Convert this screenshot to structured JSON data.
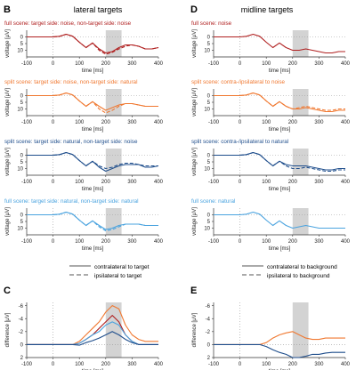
{
  "figure": {
    "panel_letters": [
      "B",
      "D",
      "C",
      "E"
    ],
    "column_titles": [
      "lateral targets",
      "midline targets"
    ]
  },
  "colors": {
    "dark_red": "#b02020",
    "orange": "#f07830",
    "dark_blue": "#1f4e8c",
    "light_blue": "#4aa3df",
    "gray": "#555555",
    "shade": "#d3d3d3"
  },
  "axis_text": {
    "voltage_label": "voltage [μV]",
    "time_label": "time [ms]",
    "difference_label": "difference [μV]"
  },
  "legends": {
    "lateral": [
      "contralateral to target",
      "ipsilateral to target"
    ],
    "midline": [
      "contralateral to background",
      "ipsilateral to background"
    ]
  },
  "chart_data": [
    {
      "type": "line",
      "panel": "B1",
      "title": "full scene: target side: noise, non-target side: noise",
      "color_key": "dark_red",
      "xlabel": "time [ms]",
      "ylabel": "voltage [μV]",
      "xlim": [
        -100,
        400
      ],
      "ylim": [
        15,
        -5
      ],
      "inverted_y": true,
      "xticks": [
        -100,
        0,
        100,
        200,
        300,
        400
      ],
      "yticks": [
        0,
        5,
        10
      ],
      "shaded_window": [
        200,
        260
      ],
      "x": [
        -100,
        -50,
        0,
        25,
        50,
        75,
        100,
        125,
        150,
        175,
        200,
        225,
        250,
        275,
        300,
        325,
        350,
        375,
        400
      ],
      "series": [
        {
          "name": "contralateral",
          "values": [
            0,
            0,
            0,
            -0.5,
            -2,
            -0.5,
            4,
            8,
            4.5,
            9,
            12,
            11,
            8,
            6,
            6,
            7,
            9,
            9,
            8
          ]
        },
        {
          "name": "ipsilateral",
          "values": [
            0,
            0,
            0,
            -0.5,
            -2,
            -0.5,
            4,
            8,
            4.5,
            10,
            13,
            11.5,
            9,
            7,
            6,
            7,
            9,
            9,
            8
          ]
        }
      ]
    },
    {
      "type": "line",
      "panel": "B2",
      "title": "split scene: target side: noise, non-target side: natural",
      "color_key": "orange",
      "xlabel": "time [ms]",
      "ylabel": "voltage [μV]",
      "xlim": [
        -100,
        400
      ],
      "ylim": [
        15,
        -5
      ],
      "inverted_y": true,
      "xticks": [
        -100,
        0,
        100,
        200,
        300,
        400
      ],
      "yticks": [
        0,
        5,
        10
      ],
      "shaded_window": [
        200,
        260
      ],
      "x": [
        -100,
        -50,
        0,
        25,
        50,
        75,
        100,
        125,
        150,
        175,
        200,
        225,
        250,
        275,
        300,
        325,
        350,
        375,
        400
      ],
      "series": [
        {
          "name": "contralateral",
          "values": [
            0,
            0,
            0,
            -0.5,
            -2,
            -0.5,
            4,
            8,
            4.5,
            8,
            11,
            9,
            7,
            6,
            6,
            7,
            8,
            8,
            8
          ]
        },
        {
          "name": "ipsilateral",
          "values": [
            0,
            0,
            0,
            -0.5,
            -2,
            -0.5,
            4,
            8,
            4.5,
            10,
            13,
            11,
            8,
            6,
            6,
            7,
            8,
            8,
            8
          ]
        }
      ]
    },
    {
      "type": "line",
      "panel": "B3",
      "title": "split scene: target side: natural, non-target side: noise",
      "color_key": "dark_blue",
      "xlabel": "time [ms]",
      "ylabel": "voltage [μV]",
      "xlim": [
        -100,
        400
      ],
      "ylim": [
        15,
        -5
      ],
      "inverted_y": true,
      "xticks": [
        -100,
        0,
        100,
        200,
        300,
        400
      ],
      "yticks": [
        0,
        5,
        10
      ],
      "shaded_window": [
        200,
        260
      ],
      "x": [
        -100,
        -50,
        0,
        25,
        50,
        75,
        100,
        125,
        150,
        175,
        200,
        225,
        250,
        275,
        300,
        325,
        350,
        375,
        400
      ],
      "series": [
        {
          "name": "contralateral",
          "values": [
            0,
            0,
            0,
            -0.5,
            -2,
            -0.5,
            4,
            8,
            4.5,
            9,
            12,
            10,
            8,
            7,
            7,
            7,
            9,
            9,
            8
          ]
        },
        {
          "name": "ipsilateral",
          "values": [
            0,
            0,
            0,
            -0.5,
            -2,
            -0.5,
            4,
            8,
            4.5,
            8,
            10,
            9,
            7,
            6,
            6,
            7,
            8,
            8,
            8
          ]
        }
      ]
    },
    {
      "type": "line",
      "panel": "B4",
      "title": "full scene: target side: natural, non-target side: natural",
      "color_key": "light_blue",
      "xlabel": "time [ms]",
      "ylabel": "voltage [μV]",
      "xlim": [
        -100,
        400
      ],
      "ylim": [
        15,
        -5
      ],
      "inverted_y": true,
      "xticks": [
        -100,
        0,
        100,
        200,
        300,
        400
      ],
      "yticks": [
        0,
        5,
        10
      ],
      "shaded_window": [
        200,
        260
      ],
      "x": [
        -100,
        -50,
        0,
        25,
        50,
        75,
        100,
        125,
        150,
        175,
        200,
        225,
        250,
        275,
        300,
        325,
        350,
        375,
        400
      ],
      "series": [
        {
          "name": "contralateral",
          "values": [
            0,
            0,
            0,
            -0.5,
            -2,
            -0.5,
            4,
            8,
            4.5,
            8,
            11,
            10,
            8,
            7,
            7,
            7,
            8,
            8,
            8
          ]
        },
        {
          "name": "ipsilateral",
          "values": [
            0,
            0,
            0,
            -0.5,
            -2,
            -0.5,
            4,
            8,
            4.5,
            9,
            12,
            11,
            9,
            7,
            7,
            7,
            8,
            8,
            8
          ]
        }
      ]
    },
    {
      "type": "line",
      "panel": "D1",
      "title": "full scene: noise",
      "color_key": "dark_red",
      "xlabel": "time [ms]",
      "ylabel": "voltage [μV]",
      "xlim": [
        -100,
        400
      ],
      "ylim": [
        15,
        -5
      ],
      "inverted_y": true,
      "xticks": [
        -100,
        0,
        100,
        200,
        300,
        400
      ],
      "yticks": [
        0,
        5,
        10
      ],
      "shaded_window": [
        200,
        260
      ],
      "x": [
        -100,
        -50,
        0,
        25,
        50,
        75,
        100,
        125,
        150,
        175,
        200,
        225,
        250,
        275,
        300,
        325,
        350,
        375,
        400
      ],
      "series": [
        {
          "name": "contralateral",
          "values": [
            0,
            0,
            0,
            -0.5,
            -2,
            -0.5,
            4,
            8,
            4.5,
            8,
            10,
            10,
            9,
            10,
            11,
            12,
            12,
            11,
            11
          ]
        }
      ]
    },
    {
      "type": "line",
      "panel": "D2",
      "title": "split scene: contra-/ipsilateral to noise",
      "color_key": "orange",
      "xlabel": "time [ms]",
      "ylabel": "voltage [μV]",
      "xlim": [
        -100,
        400
      ],
      "ylim": [
        15,
        -5
      ],
      "inverted_y": true,
      "xticks": [
        -100,
        0,
        100,
        200,
        300,
        400
      ],
      "yticks": [
        0,
        5,
        10
      ],
      "shaded_window": [
        200,
        260
      ],
      "x": [
        -100,
        -50,
        0,
        25,
        50,
        75,
        100,
        125,
        150,
        175,
        200,
        225,
        250,
        275,
        300,
        325,
        350,
        375,
        400
      ],
      "series": [
        {
          "name": "contralateral",
          "values": [
            0,
            0,
            0,
            -0.5,
            -2,
            -0.5,
            4,
            8,
            4.5,
            8,
            10,
            10,
            9,
            10,
            11,
            12,
            12,
            11,
            11
          ]
        },
        {
          "name": "ipsilateral",
          "values": [
            0,
            0,
            0,
            -0.5,
            -2,
            -0.5,
            4,
            8,
            4.5,
            8,
            10,
            9,
            8,
            9,
            10,
            11,
            11,
            10,
            10
          ]
        }
      ]
    },
    {
      "type": "line",
      "panel": "D3",
      "title": "split scene: contra-/ipsilateral to natural",
      "color_key": "dark_blue",
      "xlabel": "time [ms]",
      "ylabel": "voltage [μV]",
      "xlim": [
        -100,
        400
      ],
      "ylim": [
        15,
        -5
      ],
      "inverted_y": true,
      "xticks": [
        -100,
        0,
        100,
        200,
        300,
        400
      ],
      "yticks": [
        0,
        5,
        10
      ],
      "shaded_window": [
        200,
        260
      ],
      "x": [
        -100,
        -50,
        0,
        25,
        50,
        75,
        100,
        125,
        150,
        175,
        200,
        225,
        250,
        275,
        300,
        325,
        350,
        375,
        400
      ],
      "series": [
        {
          "name": "contralateral",
          "values": [
            0,
            0,
            0,
            -0.5,
            -2,
            -0.5,
            4,
            8,
            4.5,
            7,
            8,
            8,
            8,
            9,
            10,
            11,
            11,
            10,
            10
          ]
        },
        {
          "name": "ipsilateral",
          "values": [
            0,
            0,
            0,
            -0.5,
            -2,
            -0.5,
            4,
            8,
            4.5,
            8,
            10,
            10,
            9,
            10,
            11,
            12,
            12,
            11,
            11
          ]
        }
      ]
    },
    {
      "type": "line",
      "panel": "D4",
      "title": "full scene: natural",
      "color_key": "light_blue",
      "xlabel": "time [ms]",
      "ylabel": "voltage [μV]",
      "xlim": [
        -100,
        400
      ],
      "ylim": [
        15,
        -5
      ],
      "inverted_y": true,
      "xticks": [
        -100,
        0,
        100,
        200,
        300,
        400
      ],
      "yticks": [
        0,
        5,
        10
      ],
      "shaded_window": [
        200,
        260
      ],
      "x": [
        -100,
        -50,
        0,
        25,
        50,
        75,
        100,
        125,
        150,
        175,
        200,
        225,
        250,
        275,
        300,
        325,
        350,
        375,
        400
      ],
      "series": [
        {
          "name": "contralateral",
          "values": [
            0,
            0,
            0,
            -0.5,
            -2,
            -0.5,
            4,
            8,
            4.5,
            8,
            10,
            9,
            8,
            9,
            10,
            10,
            10,
            10,
            10
          ]
        }
      ]
    },
    {
      "type": "line",
      "panel": "C",
      "xlabel": "time [ms]",
      "ylabel": "difference [μV]",
      "xlim": [
        -100,
        400
      ],
      "ylim": [
        2,
        -6.5
      ],
      "inverted_y": true,
      "xticks": [
        -100,
        0,
        100,
        200,
        300,
        400
      ],
      "yticks": [
        -6,
        -4,
        -2,
        0,
        2
      ],
      "shaded_window": [
        200,
        260
      ],
      "x": [
        -100,
        -50,
        0,
        25,
        50,
        75,
        100,
        125,
        150,
        175,
        200,
        225,
        250,
        275,
        300,
        325,
        350,
        375,
        400
      ],
      "series": [
        {
          "color_key": "orange",
          "values": [
            0,
            0,
            0,
            0,
            0,
            0,
            -0.5,
            -1.5,
            -2.5,
            -3.5,
            -5,
            -6,
            -5.5,
            -3,
            -1.5,
            -0.8,
            -0.5,
            -0.5,
            -0.5
          ]
        },
        {
          "color_key": "dark_red",
          "values": [
            0,
            0,
            0,
            0,
            0,
            0,
            -0.2,
            -0.8,
            -1.5,
            -2.5,
            -3.5,
            -4.5,
            -3.5,
            -1.5,
            -0.5,
            0,
            0,
            0,
            0
          ]
        },
        {
          "color_key": "light_blue",
          "values": [
            0,
            0,
            0,
            0,
            0,
            0,
            -0.2,
            -0.8,
            -1.5,
            -2,
            -3,
            -3.5,
            -3,
            -1.5,
            -0.5,
            0,
            0,
            0,
            0
          ]
        },
        {
          "color_key": "dark_blue",
          "values": [
            0,
            0,
            0,
            0,
            0,
            0,
            0.1,
            -0.3,
            -0.6,
            -1,
            -1.5,
            -2,
            -1.5,
            -0.8,
            -0.3,
            0,
            0,
            0,
            0
          ]
        }
      ]
    },
    {
      "type": "line",
      "panel": "E",
      "xlabel": "time [ms]",
      "ylabel": "difference [μV]",
      "xlim": [
        -100,
        400
      ],
      "ylim": [
        2,
        -6.5
      ],
      "inverted_y": true,
      "xticks": [
        -100,
        0,
        100,
        200,
        300,
        400
      ],
      "yticks": [
        -6,
        -4,
        -2,
        0,
        2
      ],
      "shaded_window": [
        200,
        260
      ],
      "x": [
        -100,
        -50,
        0,
        25,
        50,
        75,
        100,
        125,
        150,
        175,
        200,
        225,
        250,
        275,
        300,
        325,
        350,
        375,
        400
      ],
      "series": [
        {
          "color_key": "orange",
          "values": [
            0,
            0,
            0,
            0,
            0,
            0,
            -0.3,
            -1,
            -1.5,
            -1.8,
            -2,
            -1.5,
            -1,
            -0.8,
            -0.8,
            -1,
            -1,
            -1,
            -1
          ]
        },
        {
          "color_key": "dark_blue",
          "values": [
            0,
            0,
            0,
            0,
            0,
            0,
            0.3,
            0.8,
            1.2,
            1.5,
            2,
            2,
            1.8,
            1.5,
            1.5,
            1.3,
            1.2,
            1.2,
            1.2
          ]
        }
      ]
    }
  ]
}
